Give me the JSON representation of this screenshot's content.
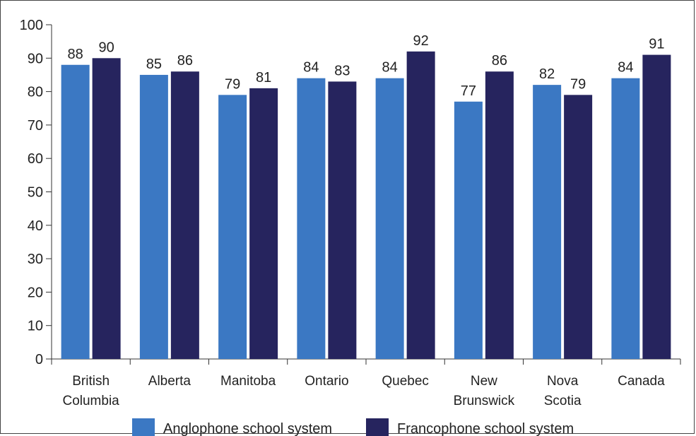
{
  "chart_data": {
    "type": "bar",
    "categories": [
      [
        "British",
        "Columbia"
      ],
      [
        "Alberta"
      ],
      [
        "Manitoba"
      ],
      [
        "Ontario"
      ],
      [
        "Quebec"
      ],
      [
        "New",
        "Brunswick"
      ],
      [
        "Nova",
        "Scotia"
      ],
      [
        "Canada"
      ]
    ],
    "series": [
      {
        "name": "Anglophone school system",
        "color": "#3b78c3",
        "values": [
          88,
          85,
          79,
          84,
          84,
          77,
          82,
          84
        ]
      },
      {
        "name": "Francophone school system",
        "color": "#26245e",
        "values": [
          90,
          86,
          81,
          83,
          92,
          86,
          79,
          91
        ]
      }
    ],
    "ylim": [
      0,
      100
    ],
    "yticks": [
      0,
      10,
      20,
      30,
      40,
      50,
      60,
      70,
      80,
      90,
      100
    ],
    "title": "",
    "xlabel": "",
    "ylabel": "",
    "grid": false,
    "legend": "bottom"
  }
}
